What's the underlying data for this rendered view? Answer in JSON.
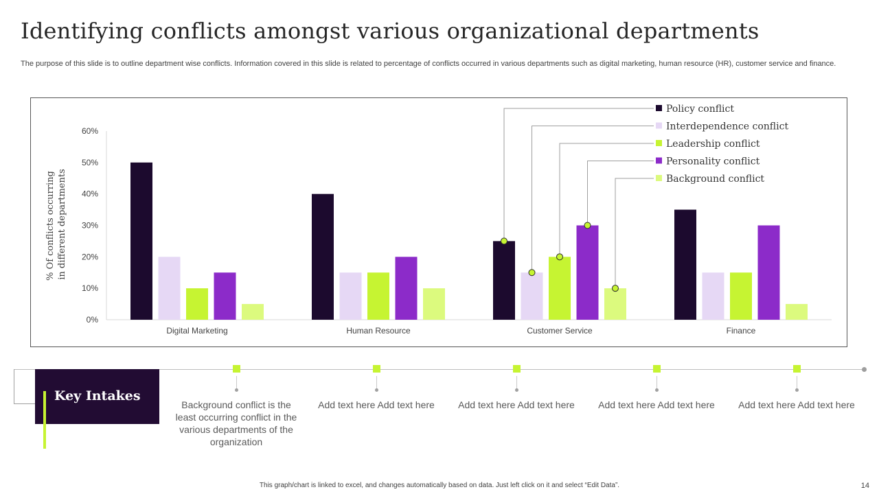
{
  "slide": {
    "title": "Identifying conflicts amongst various organizational departments",
    "subtitle": "The purpose of this slide is to outline department wise conflicts. Information covered in this slide is related to percentage of conflicts occurred in various departments such as digital marketing, human resource (HR), customer service and finance.",
    "footer": "This graph/chart is linked to excel, and changes automatically based on data. Just left click on it and select “Edit Data”.",
    "page_number": "14"
  },
  "colors": {
    "policy": "#1c0a2e",
    "interdependence": "#e6d8f5",
    "leadership": "#c6f432",
    "personality": "#8c2bc9",
    "background": "#dcfa7e",
    "accent": "#c6f432",
    "key_box": "#220c33"
  },
  "chart_data": {
    "type": "bar",
    "title": "",
    "xlabel": "",
    "ylabel": "% Of conflicts occurring in different departments",
    "ylim": [
      0,
      60
    ],
    "yticks": [
      "0%",
      "10%",
      "20%",
      "30%",
      "40%",
      "50%",
      "60%"
    ],
    "categories": [
      "Digital Marketing",
      "Human Resource",
      "Customer Service",
      "Finance"
    ],
    "series": [
      {
        "name": "Policy conflict",
        "color_key": "policy",
        "values": [
          50,
          40,
          25,
          35
        ]
      },
      {
        "name": "Interdependence conflict",
        "color_key": "interdependence",
        "values": [
          20,
          15,
          15,
          15
        ]
      },
      {
        "name": "Leadership conflict",
        "color_key": "leadership",
        "values": [
          10,
          15,
          20,
          15
        ]
      },
      {
        "name": "Personality conflict",
        "color_key": "personality",
        "values": [
          15,
          20,
          30,
          30
        ]
      },
      {
        "name": "Background conflict",
        "color_key": "background",
        "values": [
          5,
          10,
          10,
          5
        ]
      }
    ],
    "legend_position": "top-right",
    "legend_callouts_category": "Customer Service"
  },
  "key_intakes": {
    "title": "Key Intakes",
    "items": [
      "Background conflict is the least occurring conflict in the various departments of the organization",
      "Add text here Add text here",
      "Add text here Add text here",
      "Add text here Add text here",
      "Add text here Add text here"
    ]
  }
}
